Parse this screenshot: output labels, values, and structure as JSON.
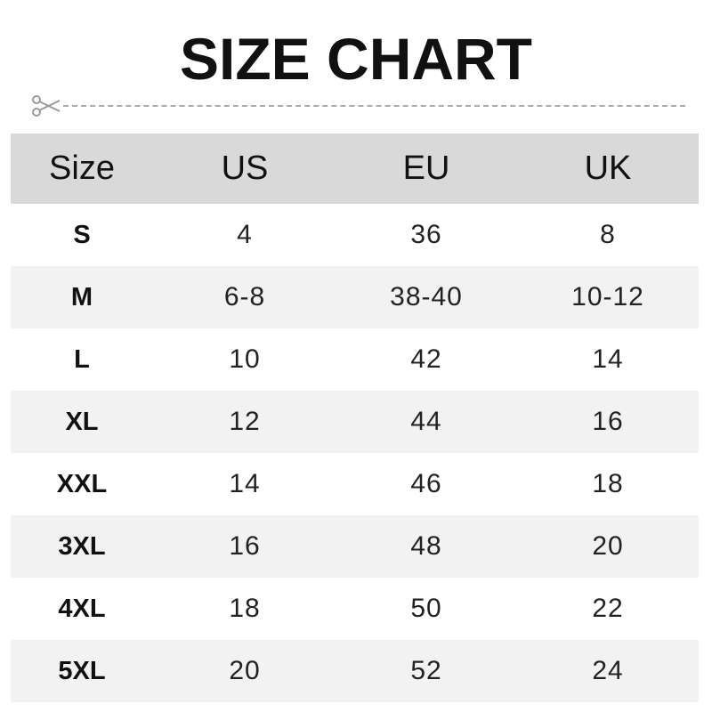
{
  "title": "SIZE CHART",
  "icons": {
    "cut_line": "scissors-icon"
  },
  "table": {
    "headers": [
      "Size",
      "US",
      "EU",
      "UK"
    ],
    "rows": [
      [
        "S",
        "4",
        "36",
        "8"
      ],
      [
        "M",
        "6-8",
        "38-40",
        "10-12"
      ],
      [
        "L",
        "10",
        "42",
        "14"
      ],
      [
        "XL",
        "12",
        "44",
        "16"
      ],
      [
        "XXL",
        "14",
        "46",
        "18"
      ],
      [
        "3XL",
        "16",
        "48",
        "20"
      ],
      [
        "4XL",
        "18",
        "50",
        "22"
      ],
      [
        "5XL",
        "20",
        "52",
        "24"
      ]
    ]
  },
  "colors": {
    "header_bg": "#d9d9d9",
    "alt_row_bg": "#f2f2f2",
    "text": "#111111"
  }
}
